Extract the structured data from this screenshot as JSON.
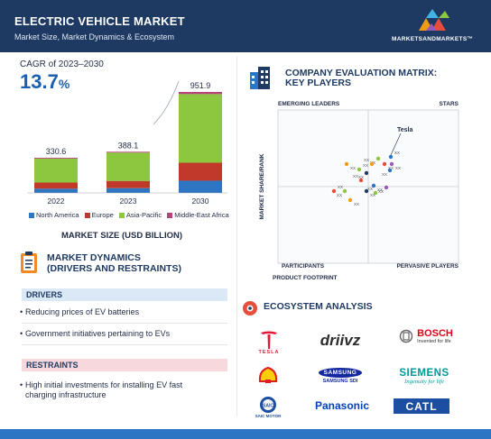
{
  "header": {
    "title": "ELECTRIC VEHICLE MARKET",
    "subtitle": "Market Size, Market Dynamics & Ecosystem",
    "brand": "MARKETSANDMARKETS™"
  },
  "cagr": {
    "label": "CAGR of 2023–2030",
    "value": "13.7",
    "unit": "%"
  },
  "chart_data": {
    "type": "bar",
    "stacked": true,
    "categories": [
      "2022",
      "2023",
      "2030"
    ],
    "totals": [
      330.6,
      388.1,
      951.9
    ],
    "total_labels": [
      "330.6",
      "388.1",
      "951.9"
    ],
    "series": [
      {
        "name": "North America",
        "color": "#2e75c4",
        "values": [
          40,
          45,
          115
        ]
      },
      {
        "name": "Europe",
        "color": "#c0392b",
        "values": [
          58,
          68,
          170
        ]
      },
      {
        "name": "Asia-Pacific",
        "color": "#8dc63f",
        "values": [
          225,
          267,
          647
        ]
      },
      {
        "name": "Middle-East Africa",
        "color": "#b5447c",
        "values": [
          7.6,
          8.1,
          19.9
        ]
      }
    ],
    "xlabel": "MARKET SIZE (USD BILLION)",
    "ylabel": "",
    "grid": false,
    "legend": "bottom"
  },
  "dynamics": {
    "title_line1": "MARKET DYNAMICS",
    "title_line2": "(DRIVERS AND RESTRAINTS)",
    "drivers_label": "DRIVERS",
    "drivers": [
      "Reducing prices of EV batteries",
      "Government initiatives pertaining to EVs"
    ],
    "restraints_label": "RESTRAINTS",
    "restraints": [
      "High initial investments for installing EV fast",
      "charging infrastructure"
    ]
  },
  "matrix": {
    "title_line1": "COMPANY EVALUATION MATRIX:",
    "title_line2": "KEY PLAYERS",
    "quadrants": {
      "top_left": "EMERGING LEADERS",
      "top_right": "STARS",
      "bottom_left": "PARTICIPANTS",
      "bottom_right": "PERVASIVE PLAYERS"
    },
    "y_axis": "MARKET SHARE/RANK",
    "x_axis": "PRODUCT FOOTPRINT",
    "highlight": "Tesla",
    "point_label": "XX"
  },
  "ecosystem": {
    "title": "ECOSYSTEM ANALYSIS",
    "logos": {
      "tesla": "TESLA",
      "driivz": "driivz",
      "bosch": "BOSCH",
      "bosch_tagline": "Invented for life",
      "samsung": "SAMSUNG",
      "samsung_sub": "SAMSUNG SDI",
      "siemens": "SIEMENS",
      "siemens_tagline": "Ingenuity for life",
      "saic": "SAIC MOTOR",
      "panasonic": "Panasonic",
      "catl": "CATL"
    },
    "colors": {
      "tesla": "#e31937",
      "shell_yellow": "#fbce07",
      "shell_red": "#dd1d21",
      "samsung": "#1428a0",
      "siemens": "#009999",
      "panasonic": "#0041c0",
      "catl": "#1c4fa1",
      "bosch": "#e20015"
    }
  }
}
